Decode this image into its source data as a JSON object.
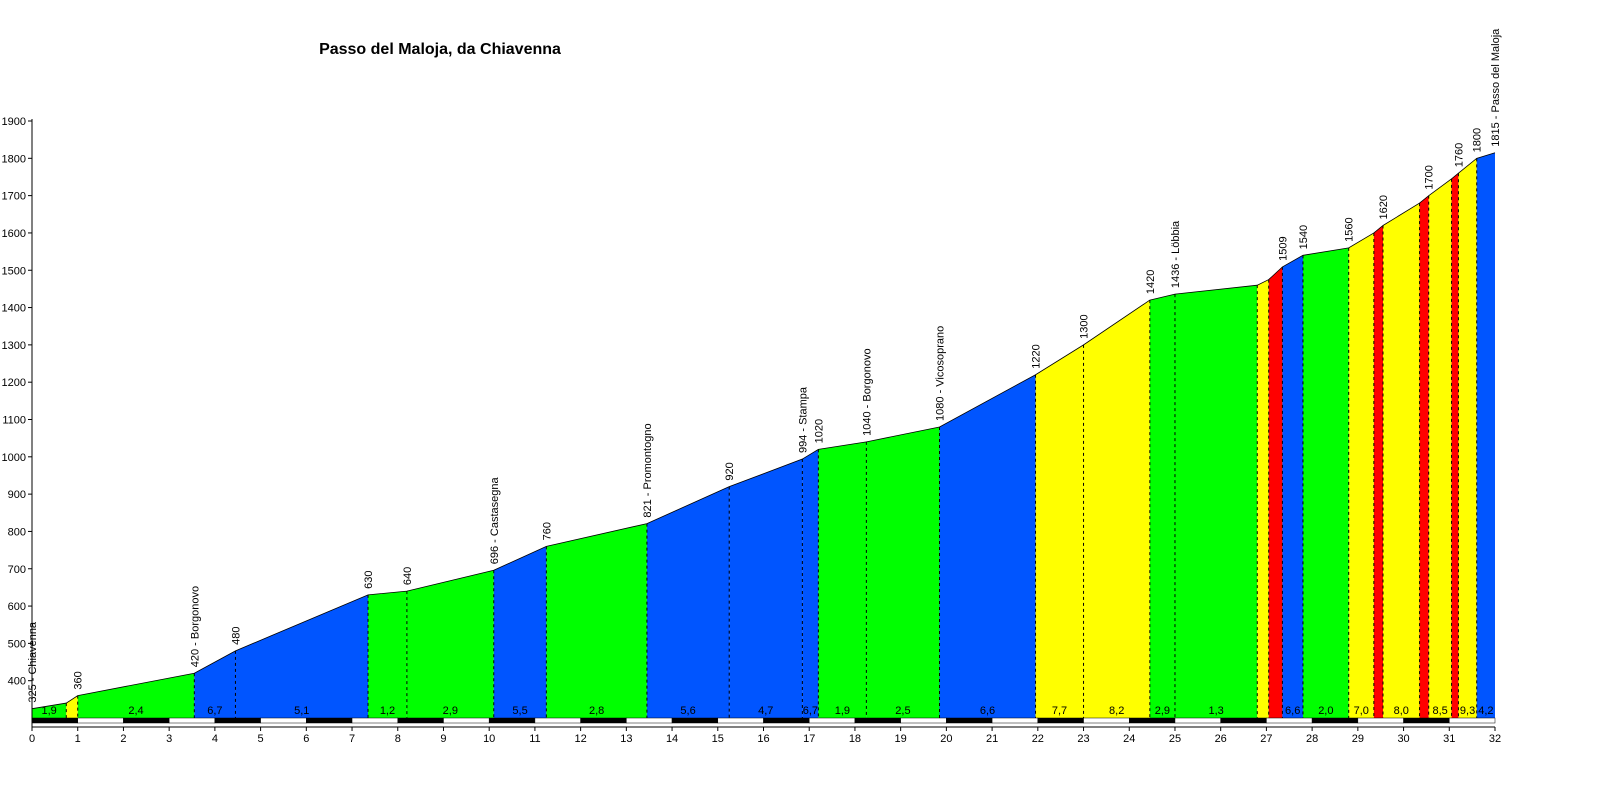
{
  "chart_data": {
    "type": "area",
    "title": "Passo del Maloja, da Chiavenna",
    "xlabel": "",
    "ylabel": "",
    "xlim": [
      0,
      32
    ],
    "ylim": [
      300,
      1900
    ],
    "x_ticks": [
      0,
      1,
      2,
      3,
      4,
      5,
      6,
      7,
      8,
      9,
      10,
      11,
      12,
      13,
      14,
      15,
      16,
      17,
      18,
      19,
      20,
      21,
      22,
      23,
      24,
      25,
      26,
      27,
      28,
      29,
      30,
      31,
      32
    ],
    "y_ticks": [
      400,
      500,
      600,
      700,
      800,
      900,
      1000,
      1100,
      1200,
      1300,
      1400,
      1500,
      1600,
      1700,
      1800,
      1900
    ],
    "grid": false,
    "legend": "none",
    "colors": {
      "green": "#00ff00",
      "blue": "#0055ff",
      "yellow": "#ffff00",
      "red": "#ff0000"
    },
    "profile": [
      {
        "km": 0.0,
        "alt": 325
      },
      {
        "km": 0.75,
        "alt": 340
      },
      {
        "km": 1.0,
        "alt": 360
      },
      {
        "km": 3.55,
        "alt": 420
      },
      {
        "km": 4.45,
        "alt": 480
      },
      {
        "km": 7.35,
        "alt": 630
      },
      {
        "km": 8.2,
        "alt": 640
      },
      {
        "km": 10.1,
        "alt": 696
      },
      {
        "km": 11.25,
        "alt": 760
      },
      {
        "km": 13.45,
        "alt": 821
      },
      {
        "km": 15.25,
        "alt": 920
      },
      {
        "km": 16.85,
        "alt": 994
      },
      {
        "km": 17.2,
        "alt": 1020
      },
      {
        "km": 18.25,
        "alt": 1040
      },
      {
        "km": 19.85,
        "alt": 1080
      },
      {
        "km": 21.95,
        "alt": 1220
      },
      {
        "km": 23.0,
        "alt": 1300
      },
      {
        "km": 24.45,
        "alt": 1420
      },
      {
        "km": 25.0,
        "alt": 1436
      },
      {
        "km": 26.8,
        "alt": 1460
      },
      {
        "km": 27.05,
        "alt": 1475
      },
      {
        "km": 27.35,
        "alt": 1509
      },
      {
        "km": 27.8,
        "alt": 1540
      },
      {
        "km": 28.8,
        "alt": 1560
      },
      {
        "km": 29.35,
        "alt": 1600
      },
      {
        "km": 29.55,
        "alt": 1620
      },
      {
        "km": 30.35,
        "alt": 1680
      },
      {
        "km": 30.55,
        "alt": 1700
      },
      {
        "km": 31.05,
        "alt": 1745
      },
      {
        "km": 31.2,
        "alt": 1760
      },
      {
        "km": 31.6,
        "alt": 1800
      },
      {
        "km": 32.0,
        "alt": 1815
      }
    ],
    "segments": [
      {
        "from": 0.0,
        "to": 0.75,
        "color": "green",
        "gradient": "1,9"
      },
      {
        "from": 0.75,
        "to": 1.0,
        "color": "yellow",
        "gradient": ""
      },
      {
        "from": 1.0,
        "to": 3.55,
        "color": "green",
        "gradient": "2,4"
      },
      {
        "from": 3.55,
        "to": 4.45,
        "color": "blue",
        "gradient": "6,7"
      },
      {
        "from": 4.45,
        "to": 7.35,
        "color": "blue",
        "gradient": "5,1"
      },
      {
        "from": 7.35,
        "to": 8.2,
        "color": "green",
        "gradient": "1,2"
      },
      {
        "from": 8.2,
        "to": 10.1,
        "color": "green",
        "gradient": "2,9"
      },
      {
        "from": 10.1,
        "to": 11.25,
        "color": "blue",
        "gradient": "5,5"
      },
      {
        "from": 11.25,
        "to": 13.45,
        "color": "green",
        "gradient": "2,8"
      },
      {
        "from": 13.45,
        "to": 15.25,
        "color": "blue",
        "gradient": "5,6"
      },
      {
        "from": 15.25,
        "to": 16.85,
        "color": "blue",
        "gradient": "4,7"
      },
      {
        "from": 16.85,
        "to": 17.2,
        "color": "blue",
        "gradient": "6,7"
      },
      {
        "from": 17.2,
        "to": 18.25,
        "color": "green",
        "gradient": "1,9"
      },
      {
        "from": 18.25,
        "to": 19.85,
        "color": "green",
        "gradient": "2,5"
      },
      {
        "from": 19.85,
        "to": 21.95,
        "color": "blue",
        "gradient": "6,6"
      },
      {
        "from": 21.95,
        "to": 23.0,
        "color": "yellow",
        "gradient": "7,7"
      },
      {
        "from": 23.0,
        "to": 24.45,
        "color": "yellow",
        "gradient": "8,2"
      },
      {
        "from": 24.45,
        "to": 25.0,
        "color": "green",
        "gradient": "2,9"
      },
      {
        "from": 25.0,
        "to": 26.8,
        "color": "green",
        "gradient": "1,3"
      },
      {
        "from": 26.8,
        "to": 27.05,
        "color": "yellow",
        "gradient": ""
      },
      {
        "from": 27.05,
        "to": 27.35,
        "color": "red",
        "gradient": ""
      },
      {
        "from": 27.35,
        "to": 27.8,
        "color": "blue",
        "gradient": "6,6"
      },
      {
        "from": 27.8,
        "to": 28.8,
        "color": "green",
        "gradient": "2,0"
      },
      {
        "from": 28.8,
        "to": 29.35,
        "color": "yellow",
        "gradient": "7,0"
      },
      {
        "from": 29.35,
        "to": 29.55,
        "color": "red",
        "gradient": ""
      },
      {
        "from": 29.55,
        "to": 30.35,
        "color": "yellow",
        "gradient": "8,0"
      },
      {
        "from": 30.35,
        "to": 30.55,
        "color": "red",
        "gradient": ""
      },
      {
        "from": 30.55,
        "to": 31.05,
        "color": "yellow",
        "gradient": "8,5"
      },
      {
        "from": 31.05,
        "to": 31.2,
        "color": "red",
        "gradient": ""
      },
      {
        "from": 31.2,
        "to": 31.6,
        "color": "yellow",
        "gradient": "9,3"
      },
      {
        "from": 31.6,
        "to": 32.0,
        "color": "blue",
        "gradient": "4,2"
      }
    ],
    "annotations": [
      {
        "km": 0.0,
        "alt": 325,
        "text": "325 - Chiavenna"
      },
      {
        "km": 1.0,
        "alt": 360,
        "text": "360"
      },
      {
        "km": 3.55,
        "alt": 420,
        "text": "420 - Borgonovo"
      },
      {
        "km": 4.45,
        "alt": 480,
        "text": "480"
      },
      {
        "km": 7.35,
        "alt": 630,
        "text": "630"
      },
      {
        "km": 8.2,
        "alt": 640,
        "text": "640"
      },
      {
        "km": 10.1,
        "alt": 696,
        "text": "696 - Castasegna"
      },
      {
        "km": 11.25,
        "alt": 760,
        "text": "760"
      },
      {
        "km": 13.45,
        "alt": 821,
        "text": "821 - Promontogno"
      },
      {
        "km": 15.25,
        "alt": 920,
        "text": "920"
      },
      {
        "km": 16.85,
        "alt": 994,
        "text": "994 - Stampa"
      },
      {
        "km": 17.2,
        "alt": 1020,
        "text": "1020"
      },
      {
        "km": 18.25,
        "alt": 1040,
        "text": "1040 - Borgonovo"
      },
      {
        "km": 19.85,
        "alt": 1080,
        "text": "1080 - Vicosoprano"
      },
      {
        "km": 21.95,
        "alt": 1220,
        "text": "1220"
      },
      {
        "km": 23.0,
        "alt": 1300,
        "text": "1300"
      },
      {
        "km": 24.45,
        "alt": 1420,
        "text": "1420"
      },
      {
        "km": 25.0,
        "alt": 1436,
        "text": "1436 - Löbbia"
      },
      {
        "km": 27.35,
        "alt": 1509,
        "text": "1509"
      },
      {
        "km": 27.8,
        "alt": 1540,
        "text": "1540"
      },
      {
        "km": 28.8,
        "alt": 1560,
        "text": "1560"
      },
      {
        "km": 29.55,
        "alt": 1620,
        "text": "1620"
      },
      {
        "km": 30.55,
        "alt": 1700,
        "text": "1700"
      },
      {
        "km": 31.2,
        "alt": 1760,
        "text": "1760"
      },
      {
        "km": 31.6,
        "alt": 1800,
        "text": "1800"
      },
      {
        "km": 32.0,
        "alt": 1815,
        "text": "1815 - Passo del Maloja"
      }
    ]
  }
}
